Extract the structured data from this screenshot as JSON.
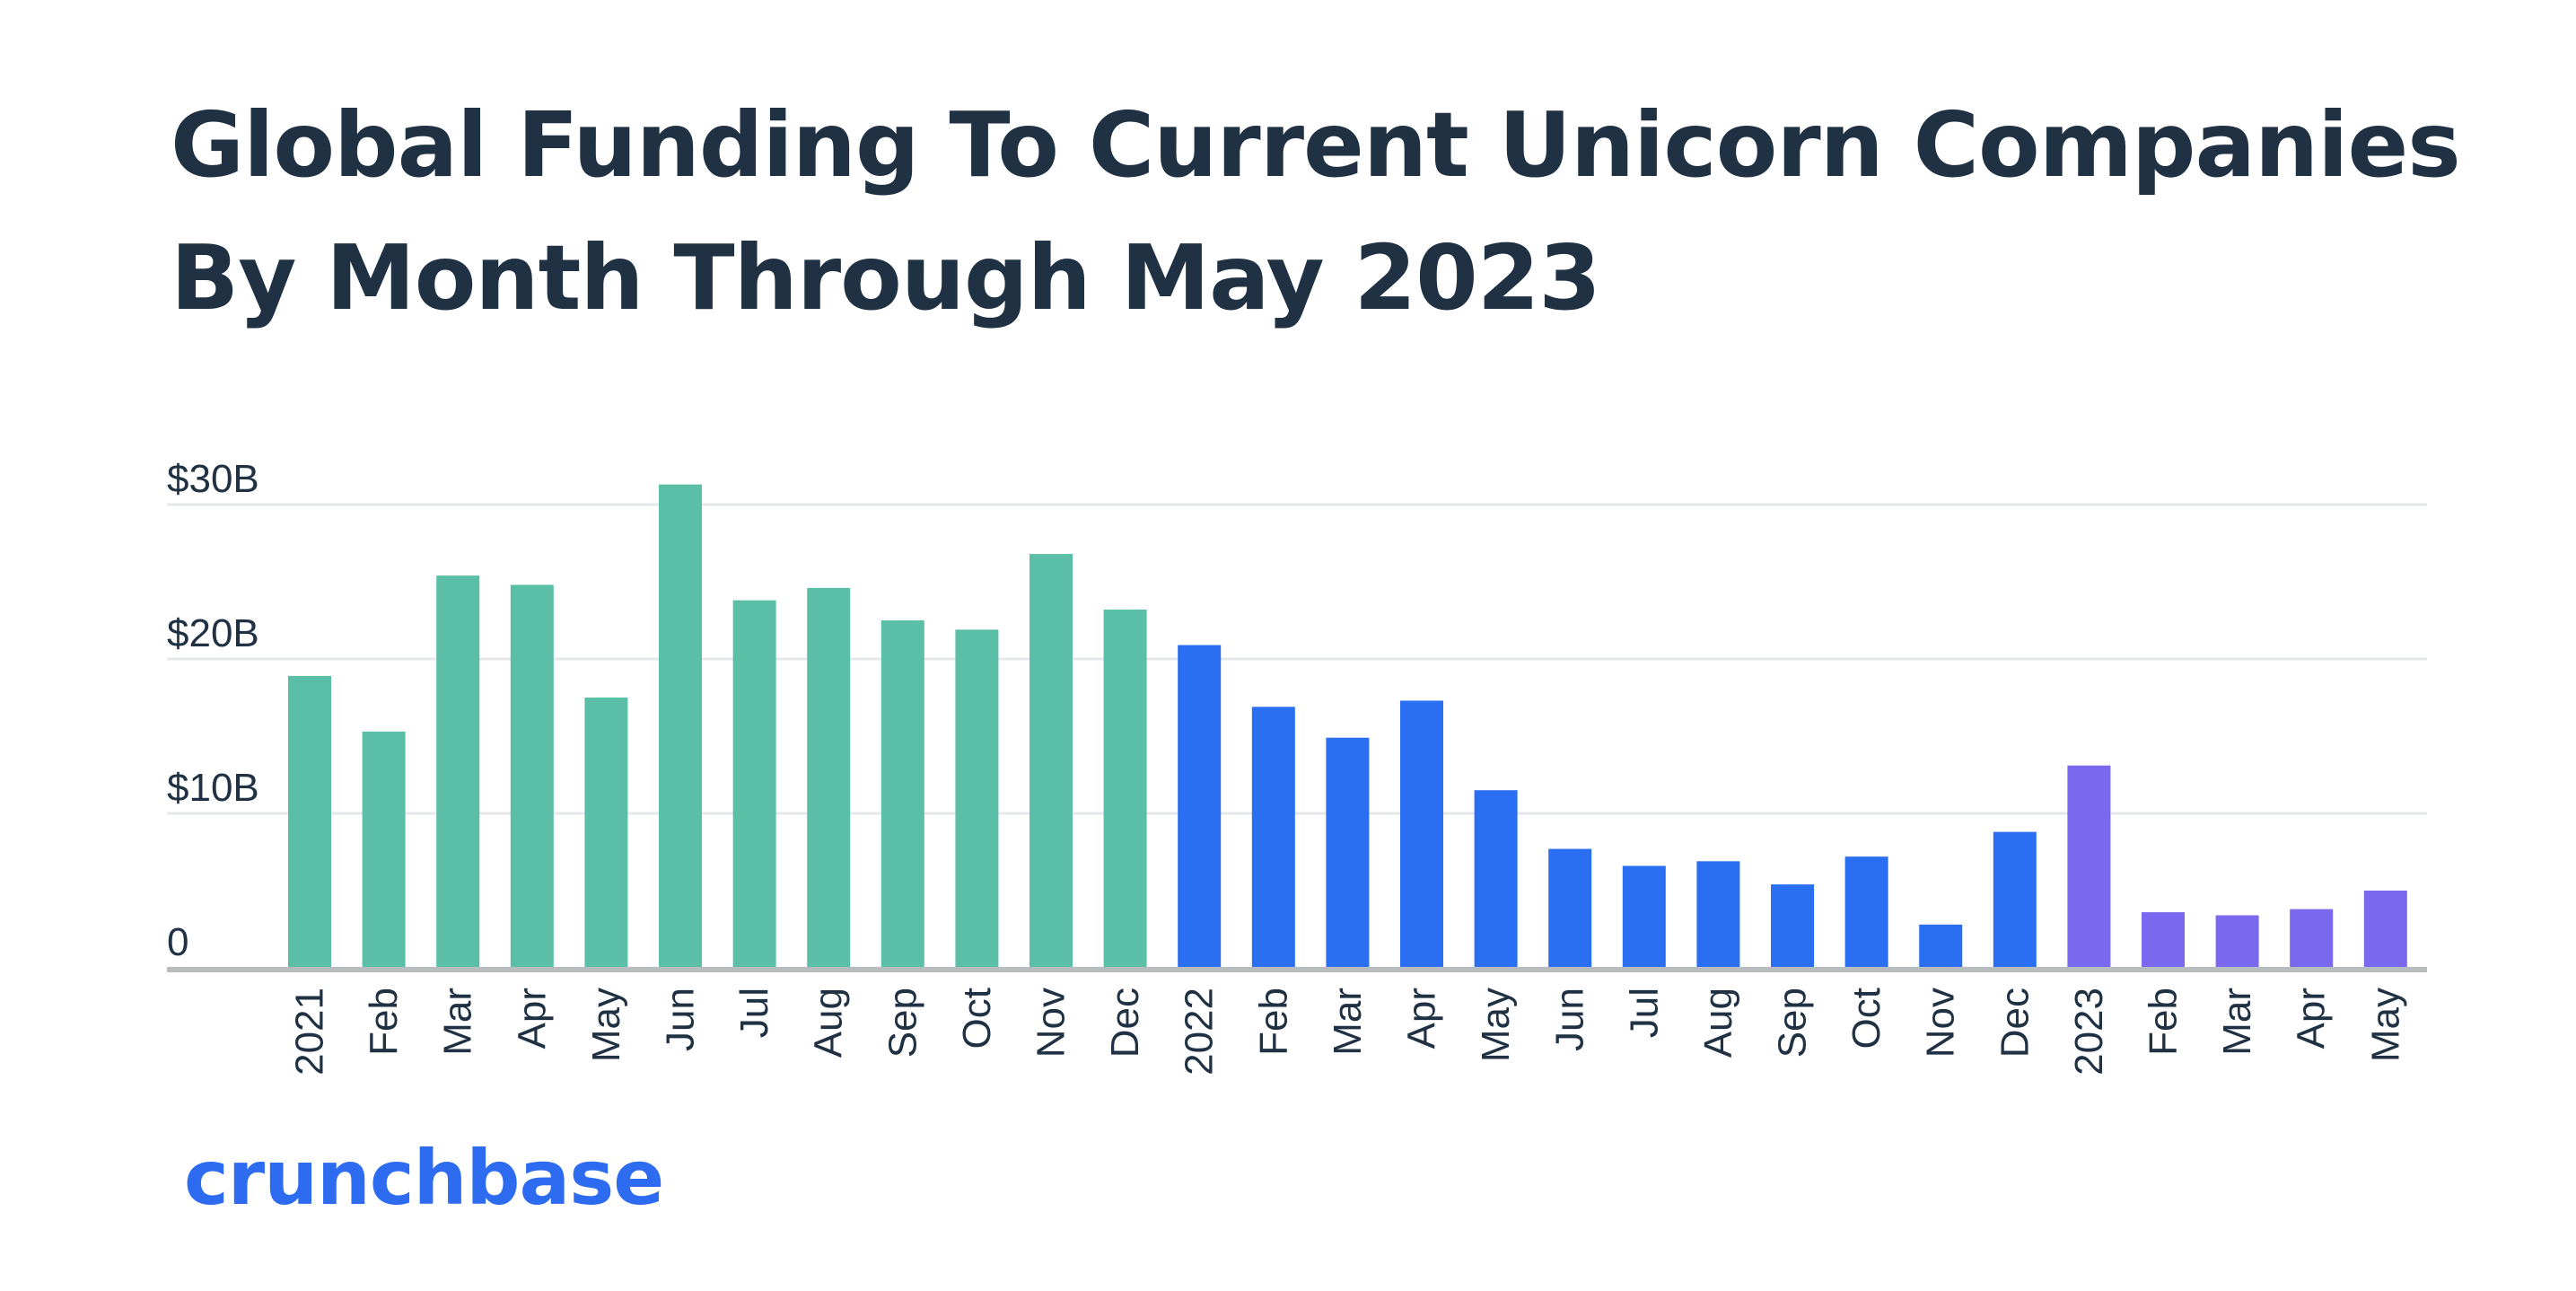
{
  "title_line1": "Global Funding To Current Unicorn Companies",
  "title_line2": "By Month Through May 2023",
  "logo": "crunchbase",
  "colors": {
    "2021": "#5bbfa8",
    "2022": "#2a6ff2",
    "2023": "#7a68ef",
    "grid": "#e6e9ec",
    "axis": "#b7bcc0",
    "text": "#1f3142"
  },
  "chart_data": {
    "type": "bar",
    "title": "Global Funding To Current Unicorn Companies By Month Through May 2023",
    "xlabel": "",
    "ylabel": "",
    "ylim": [
      0,
      30
    ],
    "y_ticks": [
      {
        "value": 0,
        "label": "0"
      },
      {
        "value": 10,
        "label": "$10B"
      },
      {
        "value": 20,
        "label": "$20B"
      },
      {
        "value": 30,
        "label": "$30B"
      }
    ],
    "unit": "$B",
    "grid": true,
    "legend": "none",
    "categories": [
      "2021",
      "Feb",
      "Mar",
      "Apr",
      "May",
      "Jun",
      "Jul",
      "Aug",
      "Sep",
      "Oct",
      "Nov",
      "Dec",
      "2022",
      "Feb",
      "Mar",
      "Apr",
      "May",
      "Jun",
      "Jul",
      "Aug",
      "Sep",
      "Oct",
      "Nov",
      "Dec",
      "2023",
      "Feb",
      "Mar",
      "Apr",
      "May"
    ],
    "years": [
      "2021",
      "2021",
      "2021",
      "2021",
      "2021",
      "2021",
      "2021",
      "2021",
      "2021",
      "2021",
      "2021",
      "2021",
      "2022",
      "2022",
      "2022",
      "2022",
      "2022",
      "2022",
      "2022",
      "2022",
      "2022",
      "2022",
      "2022",
      "2022",
      "2023",
      "2023",
      "2023",
      "2023",
      "2023"
    ],
    "values": [
      18.9,
      15.3,
      25.4,
      24.8,
      17.5,
      31.3,
      23.8,
      24.6,
      22.5,
      21.9,
      26.8,
      23.2,
      20.9,
      16.9,
      14.9,
      17.3,
      11.5,
      7.7,
      6.6,
      6.9,
      5.4,
      7.2,
      2.8,
      8.8,
      13.1,
      3.6,
      3.4,
      3.8,
      5.0
    ]
  }
}
